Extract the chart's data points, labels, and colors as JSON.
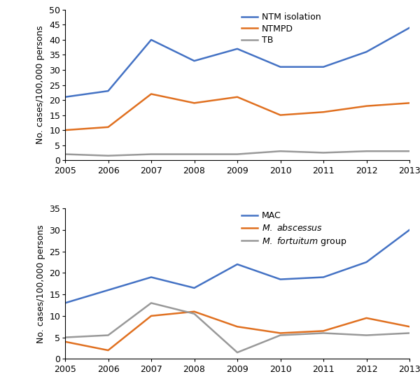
{
  "years": [
    2005,
    2006,
    2007,
    2008,
    2009,
    2010,
    2011,
    2012,
    2013
  ],
  "panel_A": {
    "NTM_isolation": [
      21,
      23,
      40,
      33,
      37,
      31,
      31,
      36,
      44
    ],
    "NTMPD": [
      10,
      11,
      22,
      19,
      21,
      15,
      16,
      18,
      19
    ],
    "TB": [
      2,
      1.5,
      2,
      2,
      2,
      3,
      2.5,
      3,
      3
    ],
    "colors": [
      "#4472C4",
      "#E07020",
      "#999999"
    ],
    "labels": [
      "NTM isolation",
      "NTMPD",
      "TB"
    ],
    "ylabel": "No. cases/100,000 persons",
    "ylim": [
      0,
      50
    ],
    "yticks": [
      0,
      5,
      10,
      15,
      20,
      25,
      30,
      35,
      40,
      45,
      50
    ]
  },
  "panel_B": {
    "MAC": [
      13,
      16,
      19,
      16.5,
      22,
      18.5,
      19,
      22.5,
      30
    ],
    "M_abscessus": [
      4,
      2,
      10,
      11,
      7.5,
      6,
      6.5,
      9.5,
      7.5
    ],
    "M_fortuitum": [
      5,
      5.5,
      13,
      10.5,
      1.5,
      5.5,
      6,
      5.5,
      6
    ],
    "colors": [
      "#4472C4",
      "#E07020",
      "#999999"
    ],
    "labels_display": [
      "MAC",
      "$\\mathit{M.\\ abscessus}$",
      "$\\mathit{M.\\ fortuitum}$ group"
    ],
    "ylabel": "No. cases/100,000 persons",
    "ylim": [
      0,
      35
    ],
    "yticks": [
      0,
      5,
      10,
      15,
      20,
      25,
      30,
      35
    ]
  },
  "line_width": 1.8,
  "tick_label_fontsize": 9,
  "axis_label_fontsize": 9,
  "legend_fontsize": 9,
  "background_color": "#ffffff"
}
